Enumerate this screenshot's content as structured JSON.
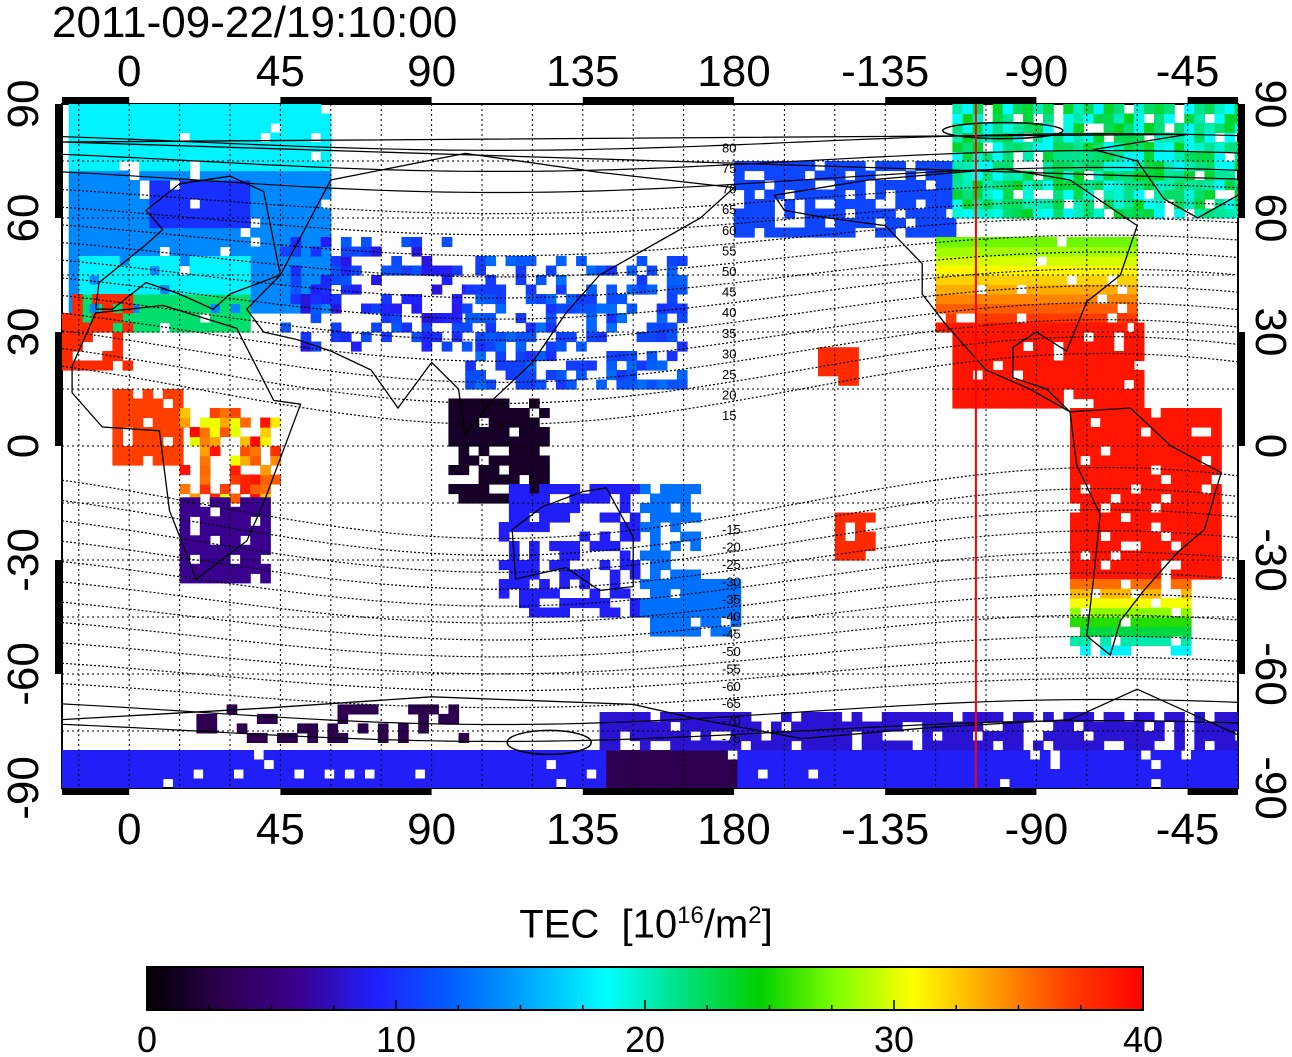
{
  "title": "2011-09-22/19:10:00",
  "map": {
    "lon_ticks": [
      "0",
      "45",
      "90",
      "135",
      "180",
      "-135",
      "-90",
      "-45"
    ],
    "lat_ticks": [
      "90",
      "60",
      "30",
      "0",
      "-30",
      "-60",
      "-90"
    ],
    "lon_range": [
      -20,
      330
    ],
    "lat_range": [
      -90,
      90
    ],
    "meridian_marker_lon": -108,
    "meridian_marker_color": "#ff0000",
    "contour_labels": [
      "80",
      "75",
      "70",
      "65",
      "60",
      "55",
      "50",
      "45",
      "40",
      "35",
      "30",
      "25",
      "20",
      "15",
      "-15",
      "-20",
      "-25",
      "-30",
      "-35",
      "-40",
      "-45",
      "-50",
      "-55",
      "-60",
      "-65",
      "-70",
      "-75"
    ]
  },
  "colorbar": {
    "label_text": "TEC",
    "label_unit_pre": "[10",
    "label_unit_exp": "16",
    "label_unit_mid": "/m",
    "label_unit_exp2": "2",
    "label_unit_post": "]",
    "ticks": [
      "0",
      "10",
      "20",
      "30",
      "40"
    ],
    "range": [
      0,
      40
    ],
    "colormap": [
      "#000000",
      "#2d0050",
      "#3a0090",
      "#2020ff",
      "#0060ff",
      "#00aaff",
      "#00ffff",
      "#00e080",
      "#00d000",
      "#80ff00",
      "#ffff00",
      "#ffa000",
      "#ff4000",
      "#ff0000"
    ]
  }
}
